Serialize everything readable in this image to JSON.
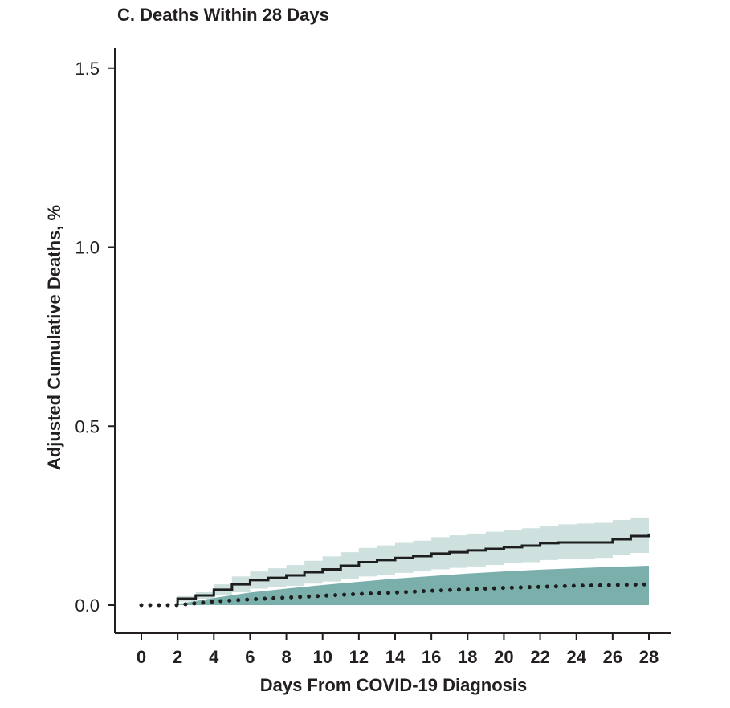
{
  "chart_data": {
    "type": "line",
    "title": "C. Deaths Within 28 Days",
    "xlabel": "Days From COVID-19 Diagnosis",
    "ylabel": "Adjusted Cumulative Deaths, %",
    "xlim": [
      0,
      28
    ],
    "ylim": [
      0,
      1.5
    ],
    "xticks": [
      0,
      2,
      4,
      6,
      8,
      10,
      12,
      14,
      16,
      18,
      20,
      22,
      24,
      26,
      28
    ],
    "yticks": [
      0.0,
      0.5,
      1.0,
      1.5
    ],
    "ytick_labels": [
      "0.0",
      "0.5",
      "1.0",
      "1.5"
    ],
    "colors": {
      "solid_band": "#cfe1de",
      "dotted_band": "#7aafac",
      "line": "#1e1e1e"
    },
    "series": [
      {
        "name": "solid",
        "style": "step-solid",
        "x": [
          2,
          3,
          4,
          5,
          6,
          7,
          8,
          9,
          10,
          11,
          12,
          13,
          14,
          15,
          16,
          17,
          18,
          19,
          20,
          21,
          22,
          23,
          24,
          25,
          26,
          27,
          28
        ],
        "y": [
          0.018,
          0.027,
          0.043,
          0.058,
          0.07,
          0.076,
          0.083,
          0.092,
          0.1,
          0.11,
          0.12,
          0.126,
          0.132,
          0.137,
          0.144,
          0.148,
          0.153,
          0.157,
          0.162,
          0.166,
          0.173,
          0.175,
          0.175,
          0.175,
          0.184,
          0.193,
          0.2
        ],
        "upper": [
          0.025,
          0.036,
          0.058,
          0.08,
          0.094,
          0.103,
          0.112,
          0.124,
          0.136,
          0.148,
          0.16,
          0.167,
          0.174,
          0.18,
          0.19,
          0.195,
          0.2,
          0.205,
          0.21,
          0.215,
          0.222,
          0.226,
          0.228,
          0.23,
          0.238,
          0.245,
          0.252
        ],
        "lower": [
          0.01,
          0.018,
          0.028,
          0.036,
          0.046,
          0.05,
          0.054,
          0.06,
          0.066,
          0.073,
          0.08,
          0.085,
          0.09,
          0.094,
          0.1,
          0.104,
          0.108,
          0.112,
          0.117,
          0.12,
          0.126,
          0.128,
          0.13,
          0.132,
          0.14,
          0.146,
          0.15
        ]
      },
      {
        "name": "dotted",
        "style": "dotted",
        "x": [
          0,
          2,
          4,
          6,
          8,
          10,
          12,
          14,
          16,
          18,
          20,
          22,
          24,
          26,
          28
        ],
        "y": [
          0,
          0,
          0.01,
          0.016,
          0.021,
          0.026,
          0.031,
          0.035,
          0.04,
          0.044,
          0.048,
          0.051,
          0.054,
          0.056,
          0.058
        ],
        "upper": [
          null,
          0.003,
          0.02,
          0.035,
          0.046,
          0.056,
          0.065,
          0.074,
          0.081,
          0.088,
          0.094,
          0.099,
          0.103,
          0.107,
          0.11
        ],
        "lower": [
          null,
          0,
          0,
          0,
          0,
          0,
          0,
          0,
          0,
          0,
          0,
          0,
          0,
          0,
          0
        ]
      }
    ]
  }
}
